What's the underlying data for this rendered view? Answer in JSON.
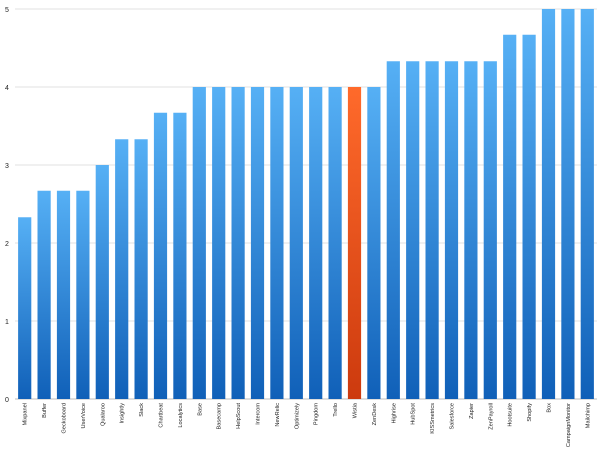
{
  "chart_data": {
    "type": "bar",
    "categories": [
      "Mixpanel",
      "Buffer",
      "Geckoboard",
      "UserVoice",
      "Qualaroo",
      "Insightly",
      "Slack",
      "Chartbeat",
      "Localytics",
      "Base",
      "Basecamp",
      "HelpScout",
      "Intercom",
      "NewRelic",
      "Optimizely",
      "Pingdom",
      "Trello",
      "Wistia",
      "ZenDesk",
      "Highrise",
      "HubSpot",
      "KISSmetrics",
      "Salesforce",
      "Zapier",
      "ZenPayroll",
      "Hootsuite",
      "Shopify",
      "Box",
      "CampaignMonitor",
      "Mailchimp"
    ],
    "values": [
      2.33,
      2.67,
      2.67,
      2.67,
      3,
      3.33,
      3.33,
      3.67,
      3.67,
      4,
      4,
      4,
      4,
      4,
      4,
      4,
      4,
      4,
      4,
      4.33,
      4.33,
      4.33,
      4.33,
      4.33,
      4.33,
      4.67,
      4.67,
      5,
      5,
      5
    ],
    "highlight_category": "Wistia",
    "colors": {
      "bar": "#2e86de",
      "bar_top": "#56b0f5",
      "bar_bottom": "#1060b8",
      "highlight": "#f4511e",
      "highlight_top": "#ff6a2b",
      "highlight_bottom": "#cc3a0e"
    },
    "yticks": [
      "0",
      "1",
      "2",
      "3",
      "4",
      "5"
    ],
    "ylim": [
      0,
      5
    ],
    "title": "",
    "xlabel": "",
    "ylabel": "",
    "grid": true
  }
}
